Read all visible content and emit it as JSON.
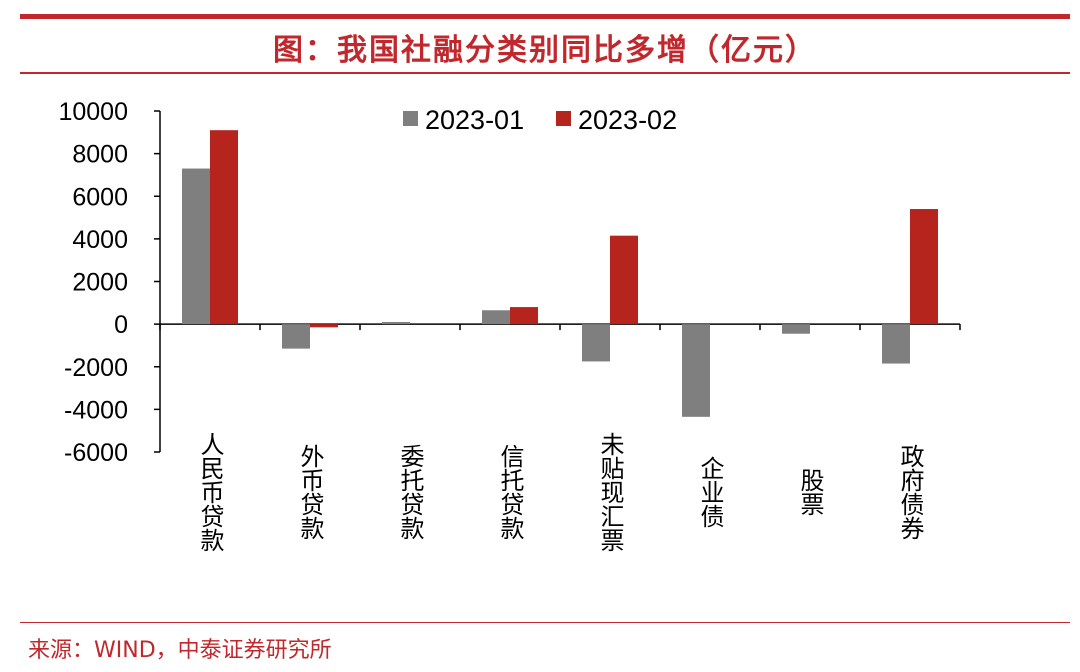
{
  "header": {
    "title": "图：我国社融分类别同比多增（亿元）"
  },
  "footer": {
    "source": "来源：WIND，中泰证券研究所"
  },
  "colors": {
    "accent": "#c0282d",
    "series_gray": "#7f7f7f",
    "series_red": "#b5251d"
  },
  "chart_data": {
    "type": "bar",
    "title": "图：我国社融分类别同比多增（亿元）",
    "xlabel": "",
    "ylabel": "",
    "categories": [
      "人民币贷款",
      "外币贷款",
      "委托贷款",
      "信托贷款",
      "未贴现汇票",
      "企业债",
      "股票",
      "政府债券"
    ],
    "series": [
      {
        "name": "2023-01",
        "color": "#7f7f7f",
        "values": [
          7300,
          -1150,
          100,
          650,
          -1750,
          -4350,
          -450,
          -1850
        ]
      },
      {
        "name": "2023-02",
        "color": "#b5251d",
        "values": [
          9100,
          -150,
          0,
          800,
          4150,
          0,
          0,
          5400
        ]
      }
    ],
    "ylim": [
      -6000,
      10000
    ],
    "yticks": [
      10000,
      8000,
      6000,
      4000,
      2000,
      0,
      -2000,
      -4000,
      -6000
    ],
    "grid": false,
    "legend": "top-center"
  }
}
